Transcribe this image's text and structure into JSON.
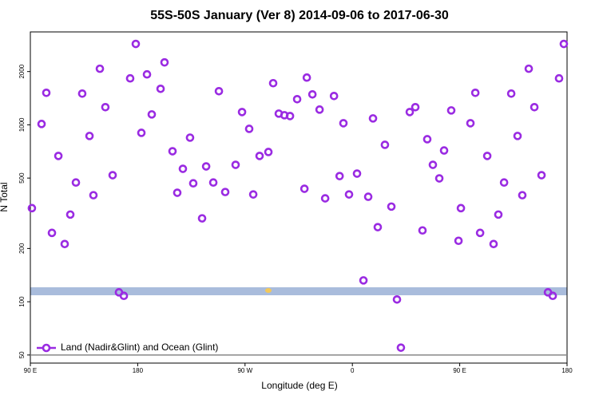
{
  "chart_data": {
    "type": "scatter",
    "title": "55S-50S January (Ver 8)   2014-09-06 to 2017-06-30",
    "x_label": "Longitude (deg E)",
    "y_label": "N Total",
    "xlim": [
      90,
      540
    ],
    "xticks": [
      {
        "value": 90,
        "label": "90 E"
      },
      {
        "value": 180,
        "label": "180"
      },
      {
        "value": 270,
        "label": "90 W"
      },
      {
        "value": 360,
        "label": "0"
      },
      {
        "value": 450,
        "label": "90 E"
      },
      {
        "value": 540,
        "label": "180"
      }
    ],
    "ylim": [
      45,
      3350
    ],
    "yticks": [
      50,
      100,
      200,
      500,
      1000,
      2000
    ],
    "log_y": true,
    "legend": "bottom-left",
    "series": [
      {
        "name": "Land (Nadir&Glint) and Ocean (Glint)",
        "color": "#9a2be2",
        "x": [
          91.3,
          99.4,
          103.4,
          108.1,
          113.5,
          118.8,
          123.5,
          128.2,
          133.5,
          139.6,
          142.9,
          148.3,
          152.9,
          159,
          164.3,
          168.4,
          173.7,
          178.4,
          183.1,
          187.8,
          191.8,
          199.2,
          202.5,
          209.2,
          213.2,
          217.9,
          223.9,
          226.6,
          234,
          237.4,
          243.4,
          248.1,
          253.4,
          262.1,
          267.5,
          273.5,
          276.9,
          282.2,
          289.6,
          293.6,
          298.3,
          303,
          307.7,
          313.7,
          319.8,
          321.8,
          326.5,
          332.5,
          337.2,
          344.6,
          349.3,
          352.5,
          357.2,
          363.9,
          369.3,
          373.3,
          377.3,
          381.3,
          387.3,
          392.7,
          397.4,
          400.7,
          408.1,
          412.8,
          418.8,
          422.8,
          427.5,
          432.9,
          436.9,
          442.9,
          449,
          451,
          459,
          463.1,
          467.1,
          473.1,
          478.4,
          482.4,
          487.2,
          493.2,
          498.5,
          502.5,
          507.9,
          512.6,
          518.6,
          524,
          528,
          533.3,
          537.3
        ],
        "values": [
          338,
          1011,
          1517,
          245,
          667,
          212,
          311,
          472,
          1501,
          865,
          400,
          2075,
          1258,
          519,
          113,
          108,
          1830,
          2865,
          901,
          1928,
          1145,
          1598,
          2254,
          709,
          413,
          564,
          846,
          467,
          296,
          582,
          472,
          1549,
          417,
          594,
          1181,
          949,
          404,
          667,
          702,
          1719,
          1157,
          1133,
          1121,
          1396,
          435,
          1849,
          1486,
          1219,
          384,
          1455,
          513,
          1021,
          404,
          530,
          132,
          392,
          1087,
          264,
          771,
          345,
          103,
          55,
          1181,
          1258,
          253,
          829,
          594,
          498,
          716,
          1206,
          221,
          338,
          1021,
          1517,
          245,
          667,
          212,
          311,
          472,
          1501,
          865,
          400,
          2075,
          1258,
          519,
          113,
          108,
          1830,
          2865
        ]
      }
    ]
  }
}
